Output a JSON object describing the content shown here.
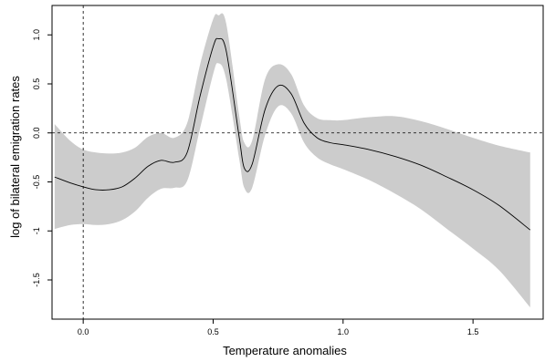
{
  "chart_data": {
    "type": "line",
    "xlabel": "Temperature anomalies",
    "ylabel": "log of bilateral emigration rates",
    "xlim": [
      -0.12,
      1.77
    ],
    "ylim": [
      -1.9,
      1.3
    ],
    "x_ticks": [
      {
        "value": 0.0,
        "label": "0.0"
      },
      {
        "value": 0.5,
        "label": "0.5"
      },
      {
        "value": 1.0,
        "label": "1.0"
      },
      {
        "value": 1.5,
        "label": "1.5"
      }
    ],
    "y_ticks": [
      {
        "value": -1.5,
        "label": "-1.5"
      },
      {
        "value": -1.0,
        "label": "-1"
      },
      {
        "value": -0.5,
        "label": "-0.5"
      },
      {
        "value": 0.0,
        "label": "0.0"
      },
      {
        "value": 0.5,
        "label": "0.5"
      },
      {
        "value": 1.0,
        "label": "1.0"
      }
    ],
    "reference_lines": {
      "vertical_x": 0.0,
      "horizontal_y": 0.0,
      "style": "dashed"
    },
    "grid": false,
    "series": [
      {
        "role": "estimate",
        "x": [
          -0.11,
          -0.05,
          0.0,
          0.05,
          0.1,
          0.15,
          0.2,
          0.25,
          0.3,
          0.35,
          0.4,
          0.45,
          0.5,
          0.52,
          0.55,
          0.6,
          0.62,
          0.65,
          0.7,
          0.75,
          0.8,
          0.85,
          0.9,
          0.95,
          1.0,
          1.1,
          1.2,
          1.3,
          1.4,
          1.5,
          1.6,
          1.72
        ],
        "y": [
          -0.45,
          -0.51,
          -0.55,
          -0.58,
          -0.58,
          -0.55,
          -0.46,
          -0.34,
          -0.28,
          -0.3,
          -0.2,
          0.38,
          0.88,
          0.96,
          0.84,
          -0.04,
          -0.36,
          -0.32,
          0.24,
          0.48,
          0.4,
          0.1,
          -0.05,
          -0.1,
          -0.12,
          -0.17,
          -0.24,
          -0.33,
          -0.45,
          -0.58,
          -0.74,
          -0.99
        ]
      },
      {
        "role": "ci-upper",
        "x": [
          -0.11,
          -0.05,
          0.0,
          0.05,
          0.1,
          0.15,
          0.2,
          0.25,
          0.3,
          0.35,
          0.4,
          0.45,
          0.5,
          0.52,
          0.55,
          0.6,
          0.62,
          0.65,
          0.7,
          0.75,
          0.8,
          0.85,
          0.9,
          0.95,
          1.0,
          1.1,
          1.2,
          1.3,
          1.4,
          1.5,
          1.6,
          1.72
        ],
        "y": [
          0.09,
          -0.08,
          -0.17,
          -0.2,
          -0.21,
          -0.2,
          -0.15,
          -0.04,
          0.0,
          -0.05,
          0.1,
          0.7,
          1.16,
          1.2,
          1.12,
          0.18,
          -0.1,
          -0.08,
          0.55,
          0.7,
          0.6,
          0.28,
          0.15,
          0.13,
          0.13,
          0.16,
          0.17,
          0.12,
          0.04,
          -0.05,
          -0.13,
          -0.2
        ]
      },
      {
        "role": "ci-lower",
        "x": [
          -0.11,
          -0.05,
          0.0,
          0.05,
          0.1,
          0.15,
          0.2,
          0.25,
          0.3,
          0.35,
          0.4,
          0.45,
          0.5,
          0.52,
          0.55,
          0.6,
          0.62,
          0.65,
          0.7,
          0.75,
          0.8,
          0.85,
          0.9,
          0.95,
          1.0,
          1.1,
          1.2,
          1.3,
          1.4,
          1.5,
          1.6,
          1.72
        ],
        "y": [
          -0.98,
          -0.94,
          -0.93,
          -0.94,
          -0.93,
          -0.89,
          -0.8,
          -0.66,
          -0.57,
          -0.56,
          -0.49,
          0.05,
          0.6,
          0.71,
          0.55,
          -0.26,
          -0.56,
          -0.56,
          -0.02,
          0.27,
          0.2,
          -0.1,
          -0.25,
          -0.32,
          -0.37,
          -0.48,
          -0.62,
          -0.78,
          -0.98,
          -1.18,
          -1.4,
          -1.78
        ]
      }
    ],
    "colors": {
      "band": "#cccccc",
      "line": "#000000",
      "axis": "#000000"
    }
  }
}
